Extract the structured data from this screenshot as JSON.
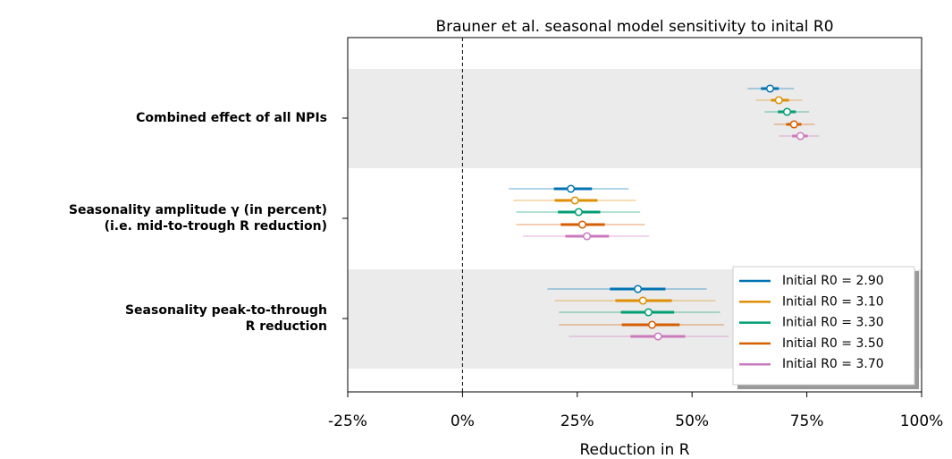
{
  "chart_data": {
    "type": "forest",
    "title": "Brauner et al. seasonal model sensitivity to inital R0",
    "xlabel": "Reduction in R",
    "categories": [
      "Combined effect of all NPIs",
      "Seasonality amplitude γ (in percent)\n(i.e. mid-to-trough R reduction)",
      "Seasonality peak-to-through\nR reduction"
    ],
    "xlim": [
      -25,
      100
    ],
    "xticks": [
      {
        "value": -25,
        "label": "-25%"
      },
      {
        "value": 0,
        "label": "0%"
      },
      {
        "value": 25,
        "label": "25%"
      },
      {
        "value": 50,
        "label": "50%"
      },
      {
        "value": 75,
        "label": "75%"
      },
      {
        "value": 100,
        "label": "100%"
      }
    ],
    "reference_line": 0,
    "legend": "lower right",
    "series": [
      {
        "name": "Initial R0 = 2.90",
        "color": "#0173b2",
        "values": [
          67.0,
          23.6,
          38.2
        ],
        "ci_inner": [
          [
            65.0,
            68.9
          ],
          [
            19.9,
            28.2
          ],
          [
            32.1,
            44.2
          ]
        ],
        "ci_outer": [
          [
            62.1,
            72.2
          ],
          [
            10.1,
            36.2
          ],
          [
            18.5,
            53.2
          ]
        ]
      },
      {
        "name": "Initial R0 = 3.10",
        "color": "#de8f05",
        "values": [
          68.9,
          24.5,
          39.3
        ],
        "ci_inner": [
          [
            67.2,
            71.1
          ],
          [
            20.1,
            29.4
          ],
          [
            33.3,
            45.6
          ]
        ],
        "ci_outer": [
          [
            63.9,
            74.0
          ],
          [
            11.1,
            37.8
          ],
          [
            20.1,
            55.1
          ]
        ]
      },
      {
        "name": "Initial R0 = 3.30",
        "color": "#029e73",
        "values": [
          70.7,
          25.3,
          40.5
        ],
        "ci_inner": [
          [
            68.7,
            72.6
          ],
          [
            20.8,
            30.0
          ],
          [
            34.5,
            46.1
          ]
        ],
        "ci_outer": [
          [
            65.8,
            75.5
          ],
          [
            11.7,
            38.7
          ],
          [
            21.0,
            56.1
          ]
        ]
      },
      {
        "name": "Initial R0 = 3.50",
        "color": "#d55e00",
        "values": [
          72.2,
          26.1,
          41.3
        ],
        "ci_inner": [
          [
            70.5,
            73.8
          ],
          [
            21.4,
            31.0
          ],
          [
            34.7,
            47.3
          ]
        ],
        "ci_outer": [
          [
            67.8,
            76.7
          ],
          [
            11.7,
            39.7
          ],
          [
            21.0,
            57.0
          ]
        ]
      },
      {
        "name": "Initial R0 = 3.70",
        "color": "#cc78bc",
        "values": [
          73.6,
          27.1,
          42.6
        ],
        "ci_inner": [
          [
            71.8,
            75.2
          ],
          [
            22.4,
            31.9
          ],
          [
            36.6,
            48.5
          ]
        ],
        "ci_outer": [
          [
            68.9,
            77.7
          ],
          [
            13.2,
            40.7
          ],
          [
            23.2,
            58.0
          ]
        ]
      }
    ]
  }
}
